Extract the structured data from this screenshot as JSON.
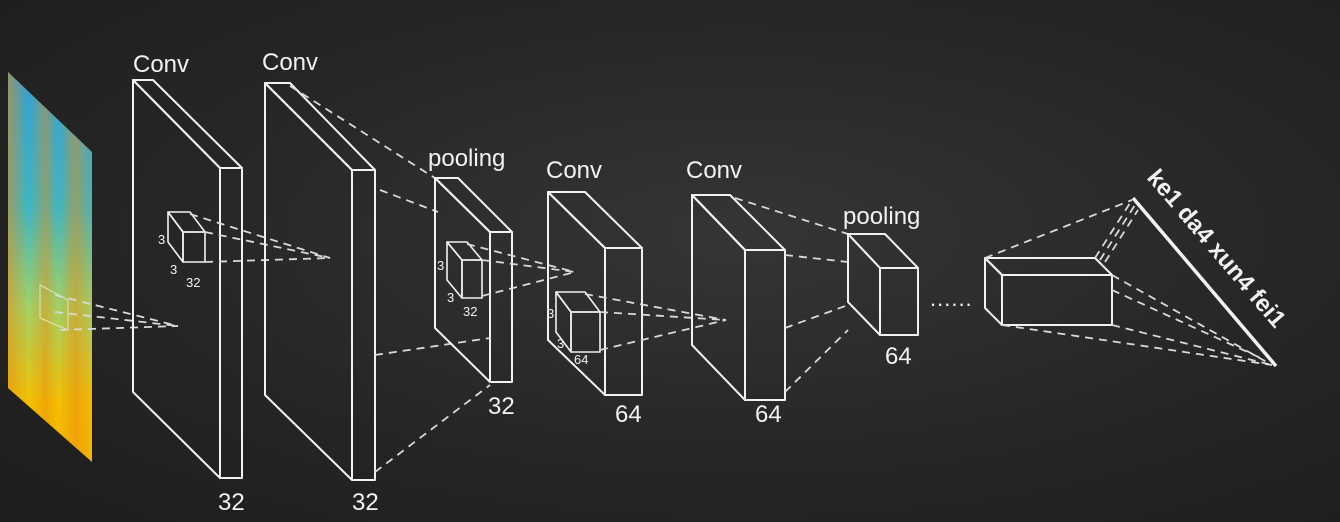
{
  "labels": {
    "conv1": "Conv",
    "conv2": "Conv",
    "pool1": "pooling",
    "conv3": "Conv",
    "conv4": "Conv",
    "pool2": "pooling"
  },
  "depths": {
    "conv1": "32",
    "conv2": "32",
    "pool1": "32",
    "conv3": "64",
    "conv4": "64",
    "pool2": "64"
  },
  "kernels": {
    "k1": {
      "h": "3",
      "w": "3",
      "d": "32"
    },
    "k2": {
      "h": "3",
      "w": "3",
      "d": "32"
    },
    "k3": {
      "h": "3",
      "w": "3",
      "d": "64"
    }
  },
  "ellipsis": "......",
  "output_text": "ke1 da4 xun4 fei1",
  "colors": {
    "background": "#262626",
    "lines": "#f2f2f2",
    "spectrogram_low": "#f5b800",
    "spectrogram_high": "#2fa0d8"
  }
}
